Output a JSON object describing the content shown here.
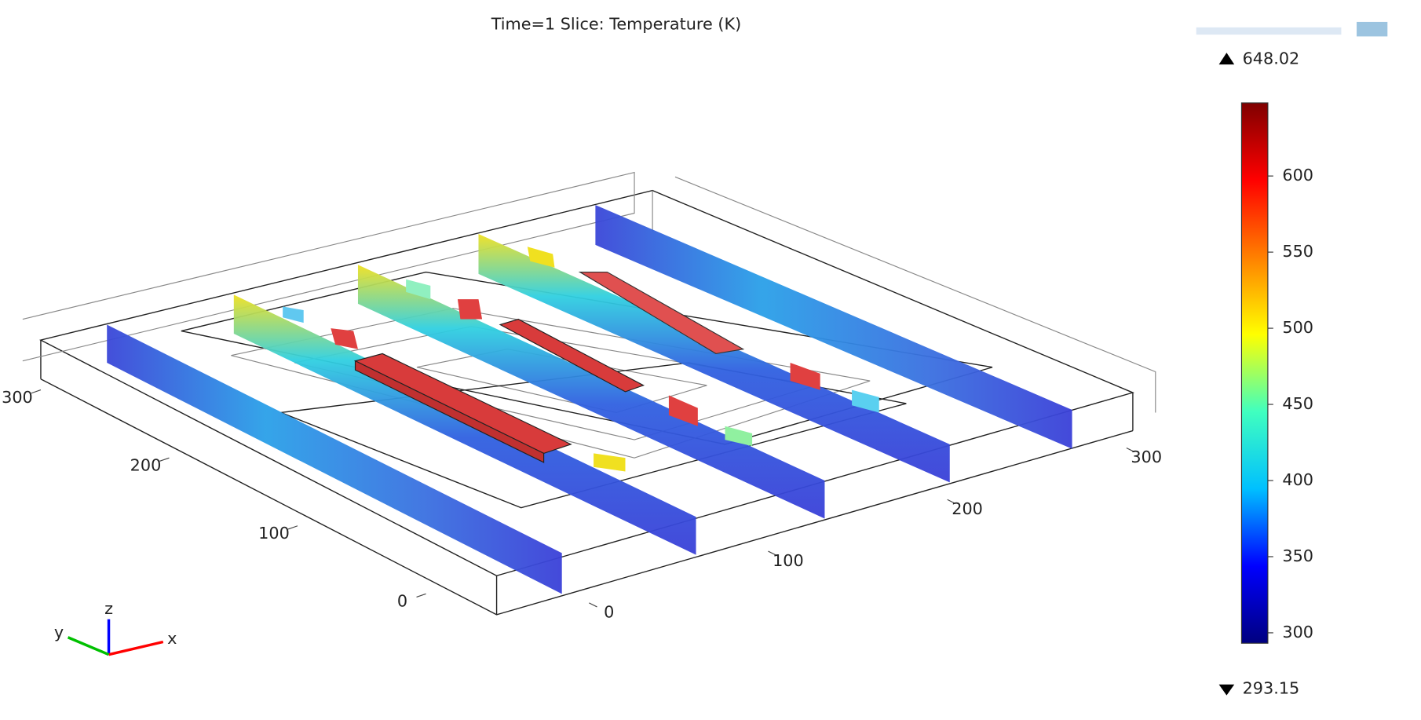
{
  "chart_data": {
    "type": "slice3d",
    "title": "Time=1  Slice: Temperature (K)",
    "x_axis_label": "x",
    "y_axis_label": "y",
    "z_axis_label": "z",
    "xlim": [
      0,
      300
    ],
    "xticks": [
      0,
      100,
      200,
      300
    ],
    "ylim": [
      0,
      300
    ],
    "yticks": [
      0,
      100,
      200,
      300
    ],
    "colorbar": {
      "clim": [
        293.15,
        648.02
      ],
      "ticks": [
        300,
        350,
        400,
        450,
        500,
        550,
        600
      ],
      "colors": [
        "#00007f",
        "#0000ff",
        "#00c0ff",
        "#40ffbf",
        "#ffff00",
        "#ff8000",
        "#ff0000",
        "#7f0000"
      ]
    }
  }
}
